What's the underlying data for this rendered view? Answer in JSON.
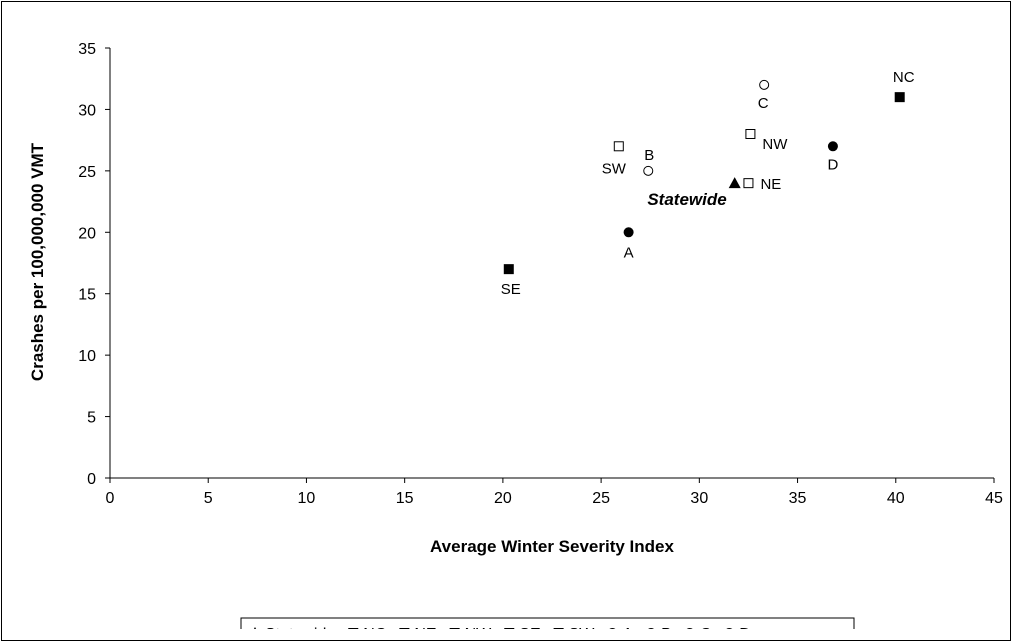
{
  "chart_data": {
    "type": "scatter",
    "title": "",
    "xlabel": "Average Winter Severity Index",
    "ylabel": "Crashes per 100,000,000 VMT",
    "xlim": [
      0,
      45
    ],
    "ylim": [
      0,
      35
    ],
    "xticks": [
      "0",
      "5",
      "10",
      "15",
      "20",
      "25",
      "30",
      "35",
      "40",
      "45"
    ],
    "yticks": [
      "0",
      "5",
      "10",
      "15",
      "20",
      "25",
      "30",
      "35"
    ],
    "grid": false,
    "legend_position": "bottom",
    "series": [
      {
        "name": "Statewide",
        "marker": "triangle-filled",
        "label": "Statewide",
        "x": 31.8,
        "y": 24
      },
      {
        "name": "NC",
        "marker": "square-filled",
        "label": "NC",
        "x": 40.2,
        "y": 31
      },
      {
        "name": "NE",
        "marker": "square-open",
        "label": "NE",
        "x": 32.5,
        "y": 24
      },
      {
        "name": "NW",
        "marker": "square-open",
        "label": "NW",
        "x": 32.6,
        "y": 28
      },
      {
        "name": "SE",
        "marker": "square-filled",
        "label": "SE",
        "x": 20.3,
        "y": 17
      },
      {
        "name": "SW",
        "marker": "square-open",
        "label": "SW",
        "x": 25.9,
        "y": 27
      },
      {
        "name": "A",
        "marker": "circle-filled",
        "label": "A",
        "x": 26.4,
        "y": 20
      },
      {
        "name": "B",
        "marker": "circle-open",
        "label": "B",
        "x": 27.4,
        "y": 25
      },
      {
        "name": "C",
        "marker": "circle-open",
        "label": "C",
        "x": 33.3,
        "y": 32
      },
      {
        "name": "D",
        "marker": "circle-filled",
        "label": "D",
        "x": 36.8,
        "y": 27
      }
    ]
  }
}
